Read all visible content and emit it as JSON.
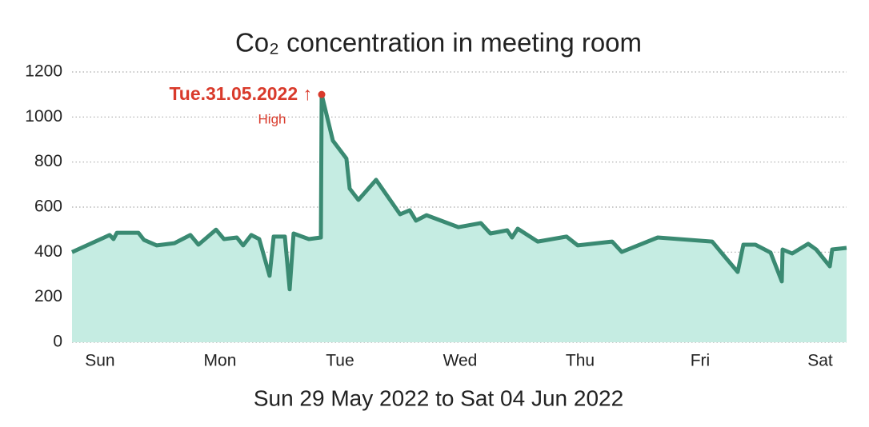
{
  "chart_data": {
    "type": "area",
    "title": "Co₂ concentration in meeting room",
    "xlabel": "Sun 29 May 2022 to Sat 04 Jun 2022",
    "annotation": {
      "label": "Tue.31.05.2022 ↑",
      "note": "High",
      "color": "#d93a2b"
    },
    "color": "#3a8a72",
    "fill": "#c5ece2",
    "grid": true,
    "x": [
      -0.233,
      0.08,
      0.113,
      0.14,
      0.32,
      0.367,
      0.473,
      0.62,
      0.753,
      0.82,
      0.967,
      1.033,
      1.14,
      1.193,
      1.26,
      1.327,
      1.413,
      1.447,
      1.54,
      1.58,
      1.613,
      1.74,
      1.84,
      1.847,
      1.94,
      2.053,
      2.08,
      2.153,
      2.3,
      2.5,
      2.58,
      2.633,
      2.72,
      2.987,
      3.173,
      3.253,
      3.393,
      3.433,
      3.48,
      3.647,
      3.887,
      3.98,
      4.267,
      4.347,
      4.647,
      5.1,
      5.2,
      5.313,
      5.36,
      5.46,
      5.587,
      5.68,
      5.687,
      5.767,
      5.9,
      5.967,
      6.08,
      6.1,
      6.22
    ],
    "values": [
      400,
      476,
      458,
      486,
      486,
      454,
      430,
      440,
      476,
      433,
      500,
      458,
      465,
      430,
      476,
      458,
      295,
      469,
      469,
      235,
      483,
      458,
      465,
      1100,
      895,
      816,
      682,
      632,
      721,
      568,
      586,
      540,
      564,
      511,
      529,
      483,
      497,
      465,
      504,
      447,
      469,
      430,
      447,
      401,
      465,
      447,
      383,
      312,
      433,
      433,
      398,
      270,
      412,
      394,
      437,
      412,
      337,
      412,
      419
    ],
    "xlim": [
      -0.233,
      6.22
    ],
    "xticks": [
      {
        "value": 0,
        "label": "Sun"
      },
      {
        "value": 1,
        "label": "Mon"
      },
      {
        "value": 2,
        "label": "Tue"
      },
      {
        "value": 3,
        "label": "Wed"
      },
      {
        "value": 4,
        "label": "Thu"
      },
      {
        "value": 5,
        "label": "Fri"
      },
      {
        "value": 6,
        "label": "Sat"
      }
    ],
    "ylim": [
      0,
      1200
    ],
    "yticks": [
      0,
      200,
      400,
      600,
      800,
      1000,
      1200
    ]
  }
}
